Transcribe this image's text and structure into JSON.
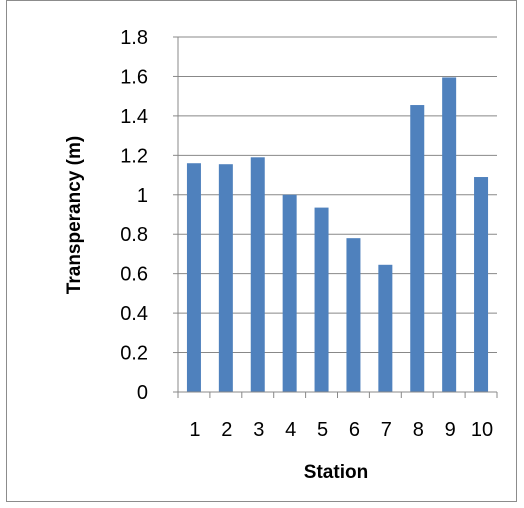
{
  "chart_data": {
    "type": "bar",
    "categories": [
      "1",
      "2",
      "3",
      "4",
      "5",
      "6",
      "7",
      "8",
      "9",
      "10"
    ],
    "values": [
      1.16,
      1.155,
      1.19,
      1.0,
      0.935,
      0.78,
      0.645,
      1.455,
      1.595,
      1.09
    ],
    "title": "",
    "xlabel": "Station",
    "ylabel": "Transperancy (m)",
    "ylim": [
      0,
      1.8
    ],
    "yticks": [
      "0",
      "0.2",
      "0.4",
      "0.6",
      "0.8",
      "1",
      "1.2",
      "1.4",
      "1.6",
      "1.8"
    ],
    "grid": true,
    "legend": "none",
    "bar_color": "#4f81bd",
    "grid_color": "#888888"
  }
}
